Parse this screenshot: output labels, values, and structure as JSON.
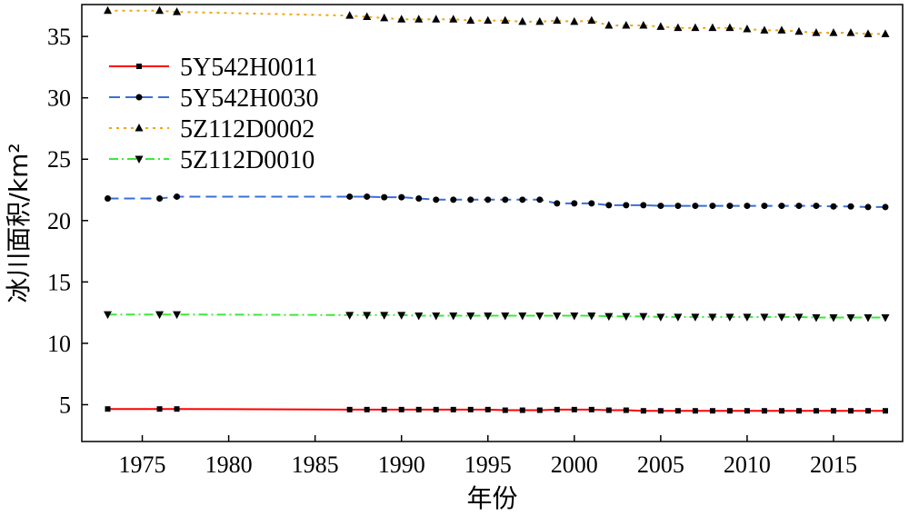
{
  "chart_data": {
    "type": "line",
    "title": "",
    "xlabel": "年份",
    "ylabel": "冰川面积/km²",
    "xlim": [
      1971.5,
      2019.0
    ],
    "ylim": [
      2.0,
      37.6
    ],
    "xticks": [
      1975,
      1980,
      1985,
      1990,
      1995,
      2000,
      2005,
      2010,
      2015
    ],
    "yticks": [
      5,
      10,
      15,
      20,
      25,
      30,
      35
    ],
    "grid": false,
    "legend_position": "top-left",
    "x": [
      1973,
      1976,
      1977,
      1987,
      1988,
      1989,
      1990,
      1991,
      1992,
      1993,
      1994,
      1995,
      1996,
      1997,
      1998,
      1999,
      2000,
      2001,
      2002,
      2003,
      2004,
      2005,
      2006,
      2007,
      2008,
      2009,
      2010,
      2011,
      2012,
      2013,
      2014,
      2015,
      2016,
      2017,
      2018
    ],
    "series": [
      {
        "name": "5Y542H0011",
        "color": "#ff0000",
        "dash": "solid",
        "marker": "square",
        "values": [
          4.65,
          4.65,
          4.65,
          4.6,
          4.6,
          4.6,
          4.6,
          4.6,
          4.6,
          4.6,
          4.6,
          4.6,
          4.55,
          4.55,
          4.55,
          4.6,
          4.6,
          4.6,
          4.55,
          4.55,
          4.5,
          4.5,
          4.5,
          4.5,
          4.5,
          4.5,
          4.5,
          4.5,
          4.5,
          4.5,
          4.5,
          4.5,
          4.5,
          4.5,
          4.5
        ]
      },
      {
        "name": "5Y542H0030",
        "color": "#3a6fd8",
        "dash": "dashed",
        "marker": "circle",
        "values": [
          21.8,
          21.8,
          21.95,
          21.95,
          21.95,
          21.9,
          21.9,
          21.8,
          21.7,
          21.7,
          21.7,
          21.7,
          21.7,
          21.7,
          21.7,
          21.4,
          21.4,
          21.4,
          21.25,
          21.25,
          21.25,
          21.2,
          21.2,
          21.2,
          21.2,
          21.2,
          21.2,
          21.2,
          21.2,
          21.2,
          21.2,
          21.15,
          21.15,
          21.1,
          21.1
        ]
      },
      {
        "name": "5Z112D0002",
        "color": "#f2a516",
        "dash": "dotted",
        "marker": "triangle-up",
        "values": [
          37.1,
          37.1,
          37.0,
          36.7,
          36.6,
          36.5,
          36.4,
          36.4,
          36.4,
          36.4,
          36.3,
          36.3,
          36.3,
          36.2,
          36.2,
          36.3,
          36.2,
          36.3,
          35.9,
          35.9,
          35.9,
          35.8,
          35.7,
          35.7,
          35.7,
          35.7,
          35.6,
          35.5,
          35.5,
          35.4,
          35.3,
          35.3,
          35.3,
          35.2,
          35.2
        ]
      },
      {
        "name": "5Z112D0010",
        "color": "#3ce83c",
        "dash": "dashdot",
        "marker": "triangle-down",
        "values": [
          12.35,
          12.35,
          12.35,
          12.3,
          12.3,
          12.3,
          12.3,
          12.25,
          12.25,
          12.25,
          12.25,
          12.25,
          12.25,
          12.25,
          12.25,
          12.25,
          12.25,
          12.25,
          12.2,
          12.2,
          12.2,
          12.15,
          12.15,
          12.15,
          12.15,
          12.15,
          12.15,
          12.15,
          12.15,
          12.15,
          12.1,
          12.1,
          12.1,
          12.1,
          12.1
        ]
      }
    ]
  }
}
